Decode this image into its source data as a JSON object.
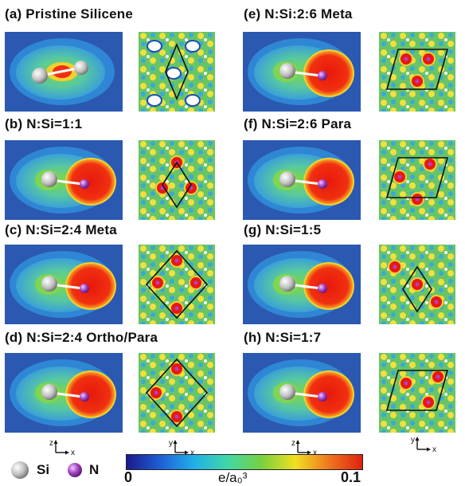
{
  "panels": [
    {
      "title": "(a) Pristine Silicene",
      "n_shift": false
    },
    {
      "title": "(b) N:Si=1:1",
      "n_shift": true
    },
    {
      "title": "(c) N:Si=2:4 Meta",
      "n_shift": true
    },
    {
      "title": "(d) N:Si=2:4 Ortho/Para",
      "n_shift": true
    },
    {
      "title": "(e) N:Si:2:6 Meta",
      "n_shift": true
    },
    {
      "title": "(f) N:Si=2:6 Para",
      "n_shift": true
    },
    {
      "title": "(g) N:Si=1:5",
      "n_shift": true
    },
    {
      "title": "(h) N:Si=1:7",
      "n_shift": true
    }
  ],
  "axes": {
    "left": {
      "vertical": "z",
      "horizontal": "x"
    },
    "right": {
      "vertical": "y",
      "horizontal": "x"
    }
  },
  "legend": {
    "si_label": "Si",
    "n_label": "N",
    "si_color": "#b8b8b8",
    "n_color": "#9b30b8"
  },
  "colorbar": {
    "min_label": "0",
    "max_label": "0.1",
    "unit_label": "e/a₀³",
    "colors": [
      "#1a1a8c",
      "#1f5fd6",
      "#20b0e8",
      "#40d8a8",
      "#78d040",
      "#f0e020",
      "#f07820",
      "#e02010"
    ]
  }
}
